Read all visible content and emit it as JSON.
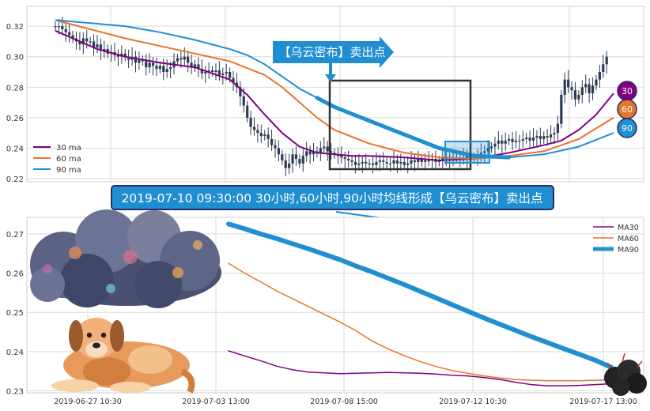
{
  "colors": {
    "ma30": "#800080",
    "ma60": "#e8742b",
    "ma90": "#1f8fd1",
    "candle": "#2d3b55",
    "grid": "#dadada",
    "frame": "#cfcfcf",
    "banner_fill": "#1f8fd1",
    "banner_border": "#2a2a6a",
    "sell_box": "#333333"
  },
  "top": {
    "annotation": "【乌云密布】卖出点",
    "legend": [
      "30 ma",
      "60 ma",
      "90 ma"
    ],
    "ma_badges": [
      "30",
      "60",
      "90"
    ]
  },
  "banner": {
    "text": "2019-07-10 09:30:00 30小时,60小时,90小时均线形成【乌云密布】卖出点"
  },
  "bottom": {
    "legend": [
      "MA30",
      "MA60",
      "MA90"
    ]
  },
  "illustrations": [
    "storm-cloud",
    "dog",
    "small-dark-cloud"
  ],
  "chart_data": [
    {
      "type": "line",
      "subtype": "candlestick-with-moving-averages",
      "ylim": [
        0.218,
        0.333
      ],
      "y_ticks": [
        "0.32",
        "0.30",
        "0.28",
        "0.26",
        "0.24",
        "0.22"
      ],
      "y_tick_values": [
        0.32,
        0.3,
        0.28,
        0.26,
        0.24,
        0.22
      ],
      "grid": true,
      "legend_position": "bottom-left",
      "x_index": [
        0,
        160
      ],
      "candles_close": [
        0.32,
        0.32,
        0.318,
        0.316,
        0.314,
        0.312,
        0.31,
        0.308,
        0.312,
        0.31,
        0.31,
        0.306,
        0.308,
        0.304,
        0.305,
        0.302,
        0.303,
        0.301,
        0.3,
        0.302,
        0.3,
        0.298,
        0.3,
        0.296,
        0.298,
        0.297,
        0.293,
        0.296,
        0.294,
        0.292,
        0.294,
        0.29,
        0.292,
        0.293,
        0.297,
        0.299,
        0.298,
        0.3,
        0.296,
        0.293,
        0.295,
        0.292,
        0.289,
        0.29,
        0.291,
        0.29,
        0.291,
        0.288,
        0.289,
        0.29,
        0.286,
        0.283,
        0.28,
        0.274,
        0.268,
        0.26,
        0.254,
        0.252,
        0.25,
        0.248,
        0.249,
        0.246,
        0.242,
        0.24,
        0.236,
        0.232,
        0.227,
        0.23,
        0.236,
        0.233,
        0.23,
        0.235,
        0.238,
        0.236,
        0.238,
        0.237,
        0.24,
        0.241,
        0.238,
        0.237,
        0.236,
        0.235,
        0.234,
        0.233,
        0.232,
        0.231,
        0.229,
        0.23,
        0.231,
        0.23,
        0.23,
        0.229,
        0.231,
        0.232,
        0.231,
        0.23,
        0.23,
        0.232,
        0.23,
        0.231,
        0.229,
        0.23,
        0.232,
        0.231,
        0.233,
        0.231,
        0.232,
        0.232,
        0.233,
        0.231,
        0.232,
        0.234,
        0.232,
        0.233,
        0.234,
        0.233,
        0.234,
        0.233,
        0.235,
        0.233,
        0.234,
        0.235,
        0.237,
        0.238,
        0.24,
        0.241,
        0.243,
        0.245,
        0.243,
        0.245,
        0.246,
        0.244,
        0.245,
        0.245,
        0.246,
        0.247,
        0.245,
        0.247,
        0.248,
        0.246,
        0.248,
        0.247,
        0.249,
        0.25,
        0.256,
        0.275,
        0.285,
        0.28,
        0.278,
        0.272,
        0.275,
        0.28,
        0.282,
        0.276,
        0.281,
        0.285,
        0.29,
        0.295,
        0.3
      ],
      "series": [
        {
          "name": "30 ma",
          "x": [
            0,
            6,
            12,
            20,
            30,
            40,
            50,
            55,
            60,
            65,
            70,
            75,
            80,
            85,
            90,
            100,
            110,
            120,
            130,
            140,
            145,
            150,
            155,
            160
          ],
          "y": [
            0.317,
            0.311,
            0.305,
            0.3,
            0.296,
            0.293,
            0.285,
            0.275,
            0.262,
            0.25,
            0.241,
            0.237,
            0.236,
            0.235,
            0.235,
            0.234,
            0.232,
            0.233,
            0.237,
            0.242,
            0.245,
            0.252,
            0.262,
            0.276
          ]
        },
        {
          "name": "60 ma",
          "x": [
            0,
            10,
            20,
            30,
            40,
            50,
            60,
            65,
            70,
            75,
            80,
            90,
            100,
            110,
            120,
            130,
            140,
            150,
            160
          ],
          "y": [
            0.324,
            0.318,
            0.312,
            0.307,
            0.302,
            0.297,
            0.288,
            0.28,
            0.27,
            0.26,
            0.252,
            0.243,
            0.237,
            0.234,
            0.233,
            0.235,
            0.238,
            0.246,
            0.26
          ]
        },
        {
          "name": "90 ma",
          "x": [
            0,
            10,
            20,
            30,
            40,
            50,
            55,
            60,
            65,
            70,
            75,
            80,
            90,
            100,
            110,
            120,
            130,
            140,
            150,
            160
          ],
          "y": [
            0.324,
            0.322,
            0.32,
            0.316,
            0.311,
            0.305,
            0.301,
            0.295,
            0.287,
            0.279,
            0.273,
            0.267,
            0.258,
            0.249,
            0.24,
            0.235,
            0.234,
            0.236,
            0.241,
            0.25
          ]
        }
      ]
    },
    {
      "type": "line",
      "ylim": [
        0.2295,
        0.2742
      ],
      "y_ticks": [
        "0.27",
        "0.26",
        "0.25",
        "0.24",
        "0.23"
      ],
      "y_tick_values": [
        0.27,
        0.26,
        0.25,
        0.24,
        0.23
      ],
      "x_tick_labels": [
        "2019-06-27 10:30",
        "2019-07-03 13:00",
        "2019-07-08 15:00",
        "2019-07-12 10:30",
        "2019-07-17 13:00"
      ],
      "grid": true,
      "legend_position": "top-right",
      "series": [
        {
          "name": "MA30",
          "x": [
            0,
            20,
            40,
            60,
            80,
            100,
            120,
            140,
            160,
            180,
            200,
            220,
            240,
            260,
            280,
            300,
            320,
            340,
            360,
            380,
            400,
            420,
            440,
            460,
            480
          ],
          "y": [
            0.2402,
            0.2389,
            0.2377,
            0.2363,
            0.2354,
            0.2348,
            0.2346,
            0.2344,
            0.2345,
            0.2346,
            0.2347,
            0.2346,
            0.2345,
            0.2343,
            0.234,
            0.2338,
            0.2334,
            0.2329,
            0.2322,
            0.2316,
            0.2313,
            0.2313,
            0.2314,
            0.2316,
            0.2318
          ]
        },
        {
          "name": "MA60",
          "x": [
            0,
            20,
            40,
            60,
            80,
            100,
            120,
            140,
            160,
            180,
            200,
            220,
            240,
            260,
            280,
            300,
            320,
            340,
            360,
            380,
            400,
            420,
            440,
            460,
            480
          ],
          "y": [
            0.2625,
            0.26,
            0.2578,
            0.2555,
            0.2535,
            0.2515,
            0.2495,
            0.2475,
            0.2453,
            0.2427,
            0.2407,
            0.239,
            0.2375,
            0.2362,
            0.2352,
            0.2345,
            0.2338,
            0.2333,
            0.2329,
            0.2327,
            0.2326,
            0.2326,
            0.2326,
            0.2327,
            0.2328
          ]
        },
        {
          "name": "MA90",
          "x": [
            0,
            20,
            40,
            60,
            80,
            100,
            120,
            140,
            160,
            180,
            200,
            220,
            240,
            260,
            280,
            300,
            320,
            340,
            360,
            380,
            400,
            420,
            440,
            460,
            480
          ],
          "y": [
            0.2725,
            0.2713,
            0.27,
            0.2688,
            0.2675,
            0.2662,
            0.2648,
            0.2634,
            0.2618,
            0.2603,
            0.2587,
            0.2571,
            0.2554,
            0.2537,
            0.252,
            0.2503,
            0.2486,
            0.247,
            0.2454,
            0.2438,
            0.2423,
            0.2408,
            0.2393,
            0.2378,
            0.236
          ]
        }
      ]
    }
  ]
}
